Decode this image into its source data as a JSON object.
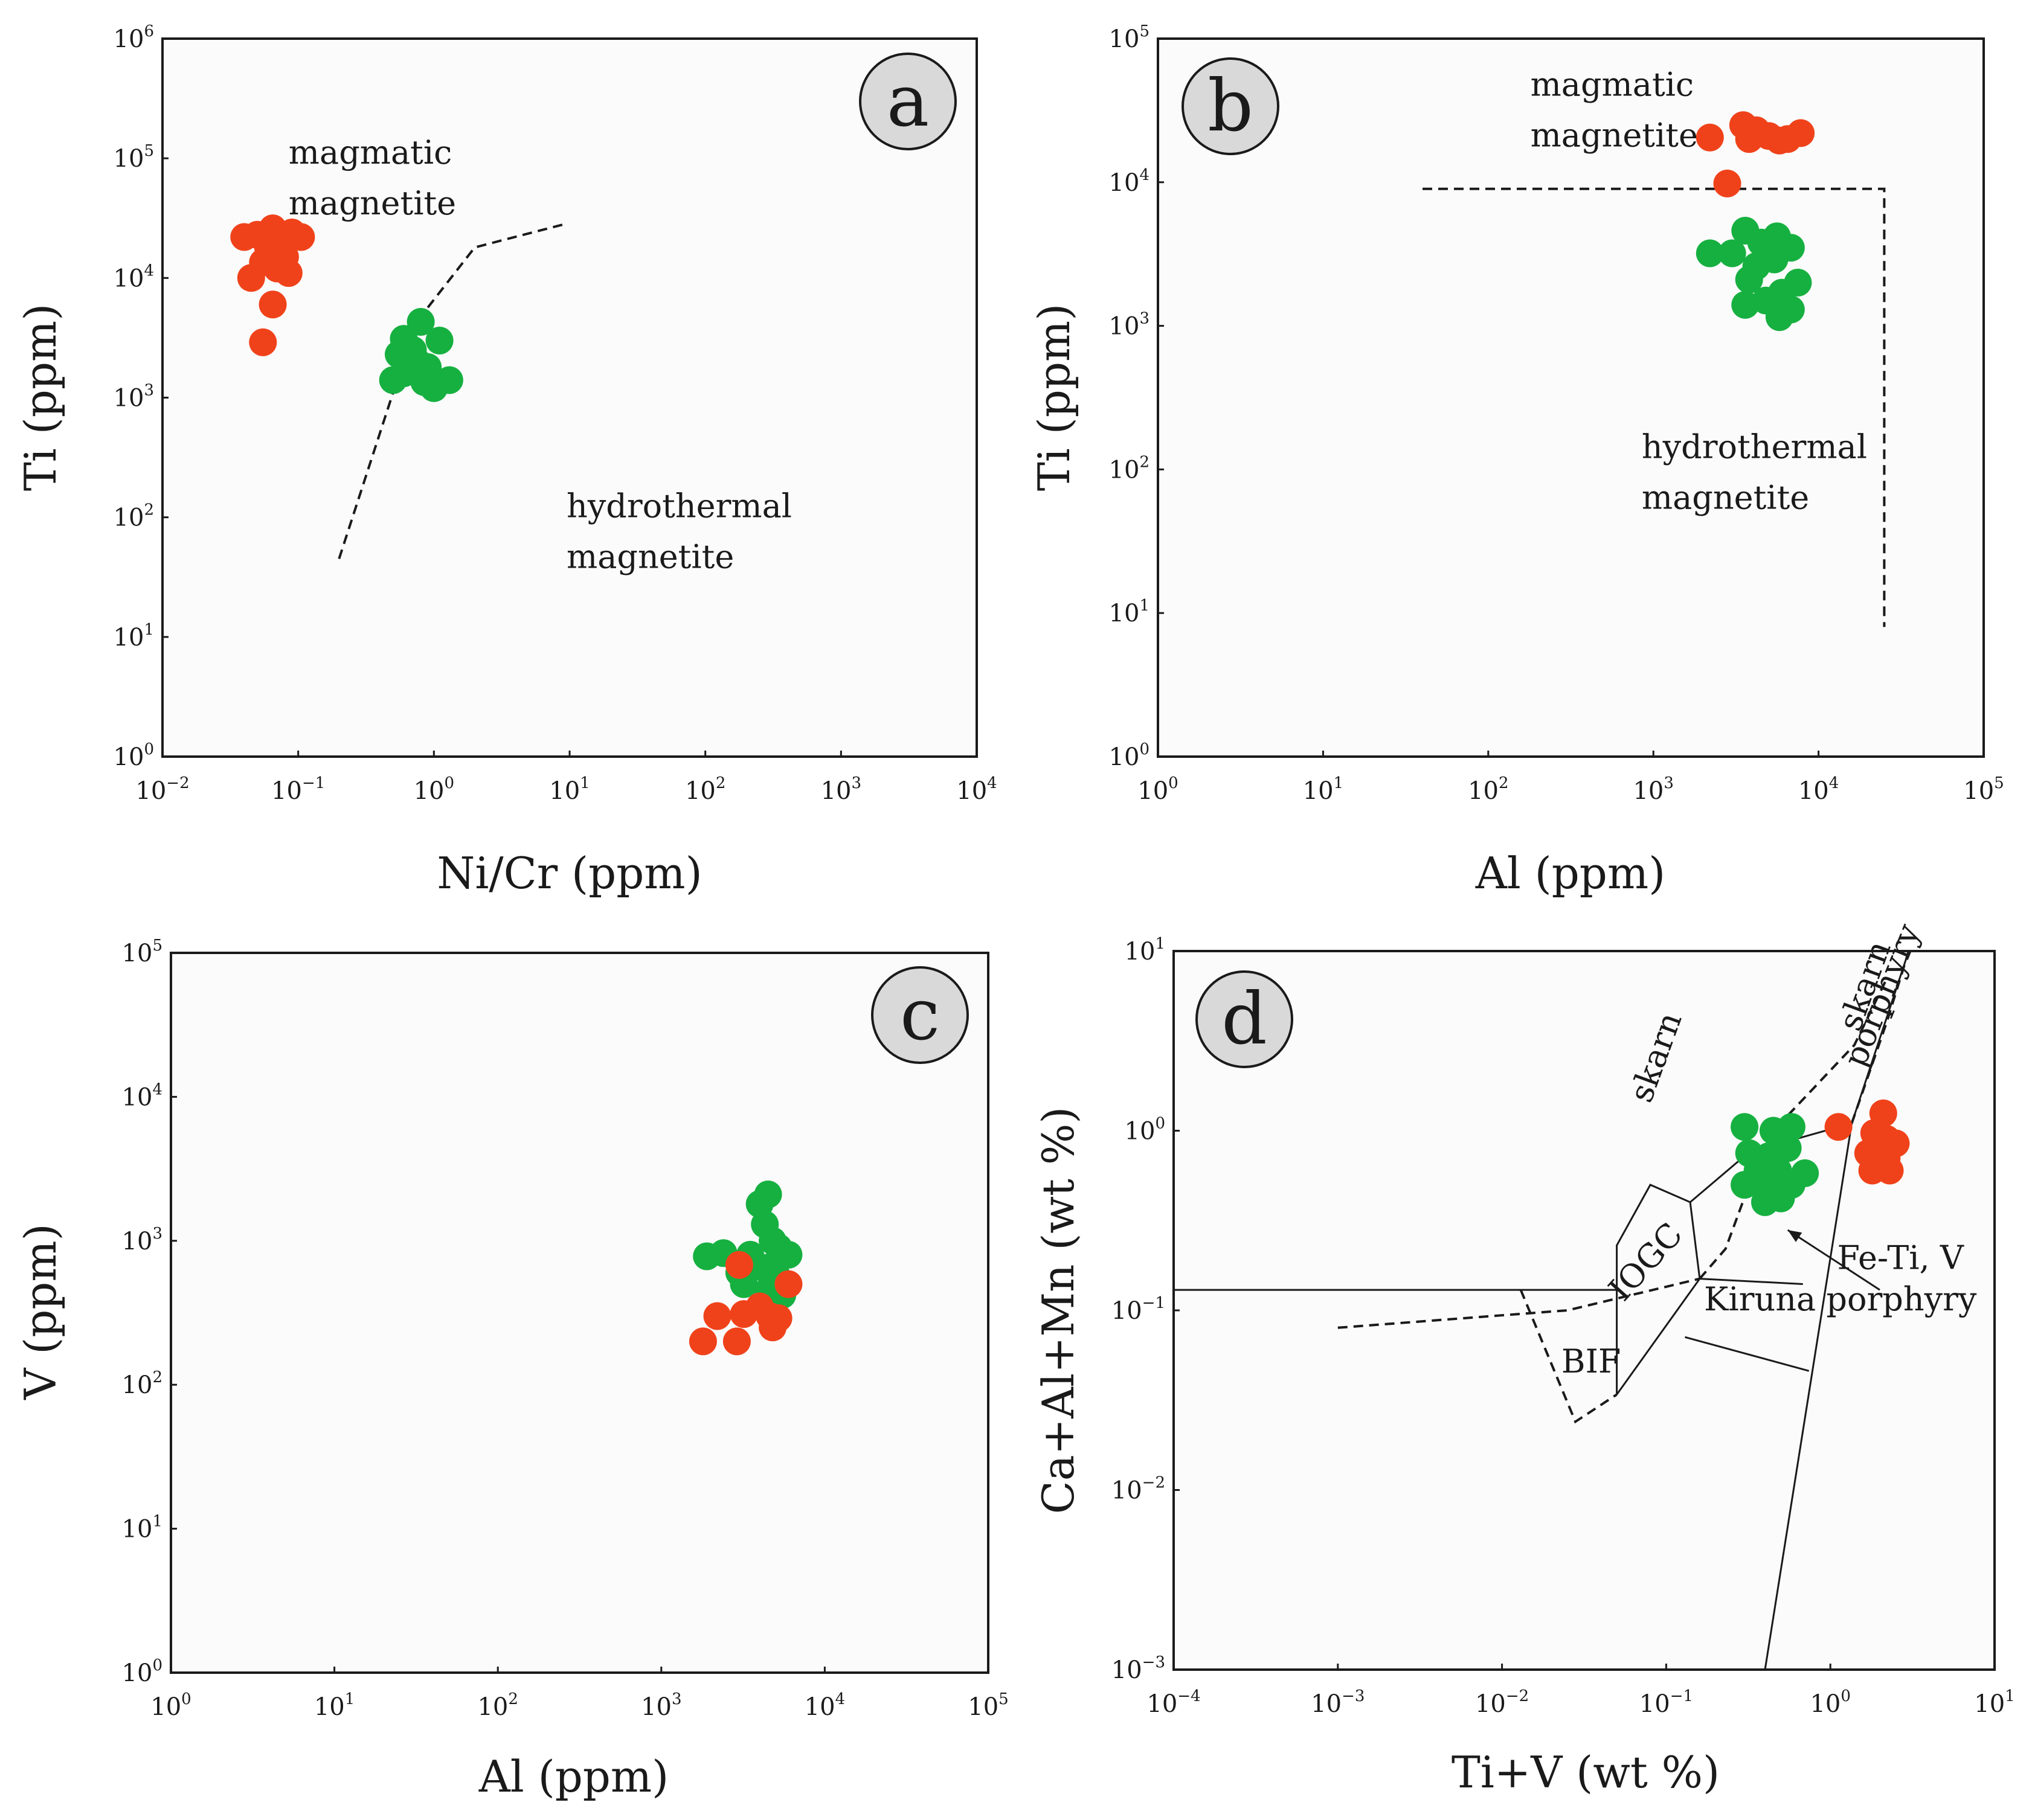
{
  "colors": {
    "magmatic_points": "#f0421a",
    "hydrothermal_points": "#16b040",
    "frame": "#1a1a1a",
    "badge_fill": "#d9d9d9"
  },
  "chart_data": [
    {
      "id": "a",
      "type": "scatter",
      "panel_label": "a",
      "xlabel": "Ni/Cr (ppm)",
      "ylabel": "Ti (ppm)",
      "xscale": "log",
      "yscale": "log",
      "xlim": [
        0.01,
        10000
      ],
      "ylim": [
        1,
        1000000
      ],
      "xtick_exponents": [
        "−2",
        "−1",
        "0",
        "1",
        "2",
        "3",
        "4"
      ],
      "ytick_exponents": [
        "0",
        "1",
        "2",
        "3",
        "4",
        "5",
        "6"
      ],
      "annotations": [
        {
          "lines": [
            "magmatic",
            "magnetite"
          ],
          "x": 0.085,
          "y": 90000
        },
        {
          "lines": [
            "hydrothermal",
            "magnetite"
          ],
          "x": 9.5,
          "y": 100
        }
      ],
      "lines": [
        {
          "style": "dashed",
          "points": [
            [
              0.2,
              45
            ],
            [
              0.5,
              1100
            ],
            [
              0.85,
              5200
            ],
            [
              2.0,
              18000
            ],
            [
              9.0,
              28000
            ]
          ]
        }
      ],
      "series": [
        {
          "name": "magmatic",
          "color": "#f0421a",
          "points": [
            [
              0.04,
              22000
            ],
            [
              0.05,
              23000
            ],
            [
              0.065,
              26000
            ],
            [
              0.075,
              20000
            ],
            [
              0.09,
              24000
            ],
            [
              0.105,
              22000
            ],
            [
              0.06,
              18000
            ],
            [
              0.08,
              15000
            ],
            [
              0.055,
              13500
            ],
            [
              0.045,
              10000
            ],
            [
              0.07,
              12000
            ],
            [
              0.085,
              11000
            ],
            [
              0.065,
              6000
            ],
            [
              0.055,
              2900
            ]
          ]
        },
        {
          "name": "hydrothermal",
          "color": "#16b040",
          "points": [
            [
              0.8,
              4300
            ],
            [
              0.6,
              3100
            ],
            [
              0.7,
              2500
            ],
            [
              1.1,
              3000
            ],
            [
              0.55,
              2300
            ],
            [
              0.75,
              2000
            ],
            [
              0.9,
              1800
            ],
            [
              0.6,
              1600
            ],
            [
              0.5,
              1400
            ],
            [
              1.0,
              1200
            ],
            [
              1.3,
              1400
            ],
            [
              0.85,
              1350
            ]
          ]
        }
      ]
    },
    {
      "id": "b",
      "type": "scatter",
      "panel_label": "b",
      "xlabel": "Al (ppm)",
      "ylabel": "Ti (ppm)",
      "xscale": "log",
      "yscale": "log",
      "xlim": [
        1,
        100000
      ],
      "ylim": [
        1,
        100000
      ],
      "xtick_exponents": [
        "0",
        "1",
        "2",
        "3",
        "4",
        "5"
      ],
      "ytick_exponents": [
        "0",
        "1",
        "2",
        "3",
        "4",
        "5"
      ],
      "annotations": [
        {
          "lines": [
            "magmatic",
            "magnetite"
          ],
          "x": 180,
          "y": 40000
        },
        {
          "lines": [
            "hydrothermal",
            "magnetite"
          ],
          "x": 850,
          "y": 120
        }
      ],
      "lines": [
        {
          "style": "dashed",
          "points": [
            [
              40,
              9000
            ],
            [
              25000,
              9000
            ],
            [
              25000,
              8
            ]
          ]
        }
      ],
      "series": [
        {
          "name": "magmatic",
          "color": "#f0421a",
          "points": [
            [
              2200,
              20500
            ],
            [
              3500,
              25000
            ],
            [
              4200,
              23000
            ],
            [
              5000,
              21000
            ],
            [
              6500,
              20000
            ],
            [
              7800,
              22000
            ],
            [
              3800,
              20000
            ],
            [
              5800,
              19500
            ],
            [
              2800,
              9800
            ]
          ]
        },
        {
          "name": "hydrothermal",
          "color": "#16b040",
          "points": [
            [
              2200,
              3200
            ],
            [
              3000,
              3200
            ],
            [
              3600,
              4600
            ],
            [
              4500,
              3800
            ],
            [
              5600,
              4200
            ],
            [
              6800,
              3500
            ],
            [
              4200,
              2600
            ],
            [
              5400,
              2900
            ],
            [
              7500,
              2000
            ],
            [
              3800,
              2100
            ],
            [
              6000,
              1700
            ],
            [
              4800,
              1500
            ],
            [
              3600,
              1400
            ],
            [
              5800,
              1150
            ],
            [
              6800,
              1300
            ]
          ]
        }
      ]
    },
    {
      "id": "c",
      "type": "scatter",
      "panel_label": "c",
      "xlabel": "Al (ppm)",
      "ylabel": "V (ppm)",
      "xscale": "log",
      "yscale": "log",
      "xlim": [
        1,
        100000
      ],
      "ylim": [
        1,
        100000
      ],
      "xtick_exponents": [
        "0",
        "1",
        "2",
        "3",
        "4",
        "5"
      ],
      "ytick_exponents": [
        "0",
        "1",
        "2",
        "3",
        "4",
        "5"
      ],
      "annotations": [],
      "lines": [],
      "series": [
        {
          "name": "hydrothermal",
          "color": "#16b040",
          "points": [
            [
              4500,
              2100
            ],
            [
              4000,
              1800
            ],
            [
              4300,
              1300
            ],
            [
              4800,
              1000
            ],
            [
              5200,
              900
            ],
            [
              3500,
              800
            ],
            [
              1900,
              780
            ],
            [
              2400,
              820
            ],
            [
              6000,
              800
            ],
            [
              4200,
              650
            ],
            [
              3000,
              600
            ],
            [
              5000,
              600
            ],
            [
              3200,
              500
            ],
            [
              4500,
              450
            ],
            [
              5500,
              420
            ]
          ]
        },
        {
          "name": "magmatic",
          "color": "#f0421a",
          "points": [
            [
              3000,
              680
            ],
            [
              6000,
              500
            ],
            [
              2200,
              300
            ],
            [
              3200,
              310
            ],
            [
              4000,
              350
            ],
            [
              4600,
              300
            ],
            [
              5200,
              290
            ],
            [
              4800,
              250
            ],
            [
              1800,
              200
            ],
            [
              2900,
              200
            ]
          ]
        }
      ]
    },
    {
      "id": "d",
      "type": "scatter",
      "panel_label": "d",
      "xlabel": "Ti+V (wt %)",
      "ylabel": "Ca+Al+Mn (wt %)",
      "xscale": "log",
      "yscale": "log",
      "xlim": [
        0.0001,
        10
      ],
      "ylim": [
        0.001,
        10
      ],
      "xtick_exponents": [
        "−4",
        "−3",
        "−2",
        "−1",
        "0",
        "1"
      ],
      "ytick_exponents": [
        "−3",
        "−2",
        "−1",
        "0",
        "1"
      ],
      "annotations": [
        {
          "lines": [
            "skarn"
          ],
          "x": 0.08,
          "y": 1.4
        },
        {
          "lines": [
            "Fe-Ti, V"
          ],
          "x": 1.1,
          "y": 0.17
        },
        {
          "lines": [
            "Kiruna porphyry"
          ],
          "x": 0.17,
          "y": 0.1
        },
        {
          "lines": [
            "BIF"
          ],
          "x": 0.023,
          "y": 0.045
        },
        {
          "lines": [
            "IOGC"
          ],
          "x": 0.055,
          "y": 0.11
        },
        {
          "lines": [
            "skarn"
          ],
          "x": 1.5,
          "y": 3.5
        },
        {
          "lines": [
            "porphyry"
          ],
          "x": 1.6,
          "y": 2.2
        }
      ],
      "lines": [
        {
          "style": "solid",
          "points": [
            [
              0.0001,
              0.13
            ],
            [
              0.05,
              0.13
            ]
          ]
        },
        {
          "style": "solid",
          "points": [
            [
              0.05,
              0.034
            ],
            [
              0.05,
              0.23
            ],
            [
              0.08,
              0.5
            ],
            [
              0.14,
              0.4
            ],
            [
              0.16,
              0.15
            ]
          ]
        },
        {
          "style": "solid",
          "points": [
            [
              0.05,
              0.034
            ],
            [
              0.16,
              0.15
            ]
          ]
        },
        {
          "style": "solid",
          "points": [
            [
              0.16,
              0.15
            ],
            [
              0.68,
              0.14
            ]
          ]
        },
        {
          "style": "solid",
          "points": [
            [
              0.13,
              0.071
            ],
            [
              0.74,
              0.046
            ]
          ]
        },
        {
          "style": "solid",
          "points": [
            [
              0.14,
              0.4
            ],
            [
              0.32,
              0.76
            ],
            [
              1.35,
              1.1
            ]
          ]
        },
        {
          "style": "solid",
          "points": [
            [
              0.4,
              0.001
            ],
            [
              1.35,
              1.1
            ],
            [
              3.0,
              10
            ]
          ]
        },
        {
          "style": "dashed",
          "points": [
            [
              0.001,
              0.08
            ],
            [
              0.025,
              0.1
            ],
            [
              0.16,
              0.15
            ]
          ]
        },
        {
          "style": "dashed",
          "points": [
            [
              0.013,
              0.13
            ],
            [
              0.028,
              0.024
            ],
            [
              0.05,
              0.034
            ]
          ]
        },
        {
          "style": "dashed",
          "points": [
            [
              0.16,
              0.15
            ],
            [
              0.23,
              0.22
            ],
            [
              0.32,
              0.5
            ],
            [
              0.45,
              1.0
            ],
            [
              1.4,
              3.0
            ],
            [
              2.2,
              7.0
            ]
          ]
        },
        {
          "style": "dashed",
          "points": [
            [
              1.35,
              1.1
            ],
            [
              2.2,
              4.0
            ],
            [
              3.0,
              10
            ]
          ]
        }
      ],
      "arrows": [
        {
          "from": [
            2.0,
            0.13
          ],
          "to": [
            0.55,
            0.28
          ]
        }
      ],
      "series": [
        {
          "name": "hydrothermal",
          "color": "#16b040",
          "points": [
            [
              0.3,
              1.05
            ],
            [
              0.45,
              1.0
            ],
            [
              0.58,
              1.05
            ],
            [
              0.32,
              0.75
            ],
            [
              0.42,
              0.72
            ],
            [
              0.55,
              0.8
            ],
            [
              0.36,
              0.6
            ],
            [
              0.48,
              0.6
            ],
            [
              0.7,
              0.58
            ],
            [
              0.3,
              0.5
            ],
            [
              0.43,
              0.48
            ],
            [
              0.58,
              0.5
            ],
            [
              0.4,
              0.4
            ],
            [
              0.5,
              0.42
            ],
            [
              0.38,
              0.65
            ]
          ]
        },
        {
          "name": "magmatic",
          "color": "#f0421a",
          "points": [
            [
              1.12,
              1.05
            ],
            [
              2.1,
              1.25
            ],
            [
              1.85,
              0.97
            ],
            [
              2.2,
              0.9
            ],
            [
              2.5,
              0.85
            ],
            [
              1.7,
              0.75
            ],
            [
              2.2,
              0.7
            ],
            [
              1.8,
              0.6
            ],
            [
              2.3,
              0.6
            ]
          ]
        }
      ]
    }
  ]
}
